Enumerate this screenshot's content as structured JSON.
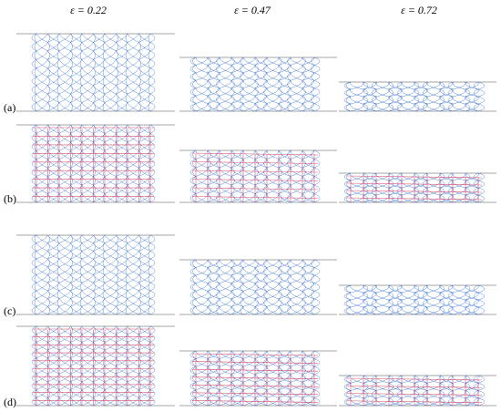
{
  "headers": [
    "ε = 0.22",
    "ε = 0.47",
    "ε = 0.72"
  ],
  "row_labels": [
    "(a)",
    "(b)",
    "(c)",
    "(d)"
  ]
}
